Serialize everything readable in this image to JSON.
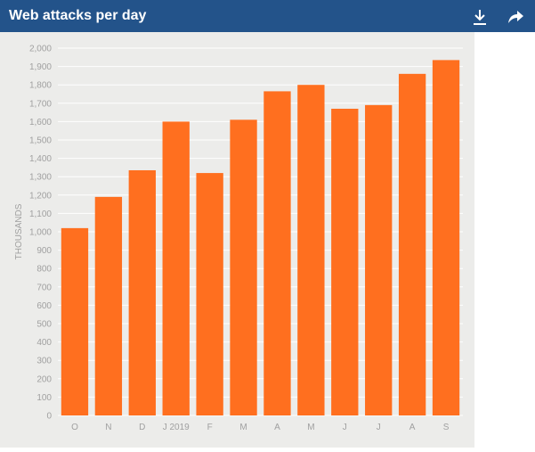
{
  "header": {
    "title": "Web attacks per day",
    "download_icon": "download-icon",
    "share_icon": "share-arrow-icon"
  },
  "colors": {
    "header_bg": "#23538a",
    "plot_bg": "#ececea",
    "bar": "#ff6f1f",
    "grid": "#ffffff",
    "tick_text": "#a0a0a0"
  },
  "chart_data": {
    "type": "bar",
    "title": "Web attacks per day",
    "ylabel": "THOUSANDS",
    "xlabel": "",
    "categories": [
      "O",
      "N",
      "D",
      "J 2019",
      "F",
      "M",
      "A",
      "M",
      "J",
      "J",
      "A",
      "S"
    ],
    "values": [
      1020,
      1190,
      1335,
      1600,
      1320,
      1610,
      1765,
      1800,
      1670,
      1690,
      1860,
      1935
    ],
    "ylim": [
      0,
      2000
    ],
    "ytick_step": 100,
    "ytick_labels": [
      "0",
      "100",
      "200",
      "300",
      "400",
      "500",
      "600",
      "700",
      "800",
      "900",
      "1,000",
      "1,100",
      "1,200",
      "1,300",
      "1,400",
      "1,500",
      "1,600",
      "1,700",
      "1,800",
      "1,900",
      "2,000"
    ],
    "grid": true,
    "legend": "none"
  }
}
